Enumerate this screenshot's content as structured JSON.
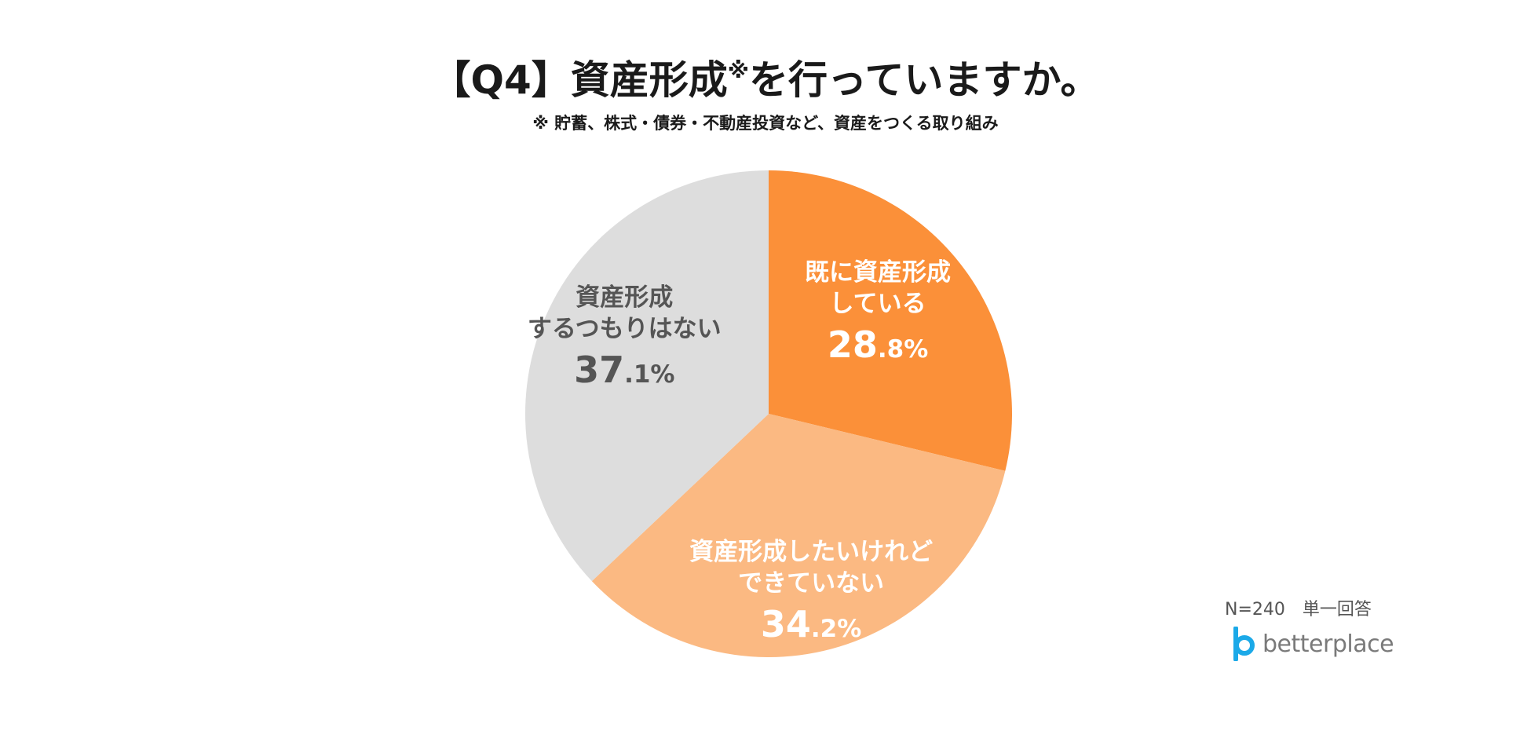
{
  "header": {
    "title_main": "【Q4】資産形成",
    "title_mark": "※",
    "title_tail": "を行っていますか。",
    "subtitle": "※ 貯蓄、株式・債券・不動産投資など、資産をつくる取り組み"
  },
  "chart_data": {
    "type": "pie",
    "start_angle_deg": 0,
    "direction": "clockwise",
    "slices": [
      {
        "lines": [
          "既に資産形成",
          "している"
        ],
        "int": "28",
        "dec": ".8%",
        "value": 28.8,
        "color": "#FB9039",
        "text_color": "#ffffff"
      },
      {
        "lines": [
          "資産形成したいけれど",
          "できていない"
        ],
        "int": "34",
        "dec": ".2%",
        "value": 34.2,
        "color": "#FBB982",
        "text_color": "#ffffff"
      },
      {
        "lines": [
          "資産形成",
          "するつもりはない"
        ],
        "int": "37",
        "dec": ".1%",
        "value": 37.1,
        "color": "#DDDDDD",
        "text_color": "#555555"
      }
    ]
  },
  "footer": {
    "note": "N=240　単一回答",
    "logo_text": "betterplace",
    "logo_icon": "betterplace-logo-icon"
  }
}
